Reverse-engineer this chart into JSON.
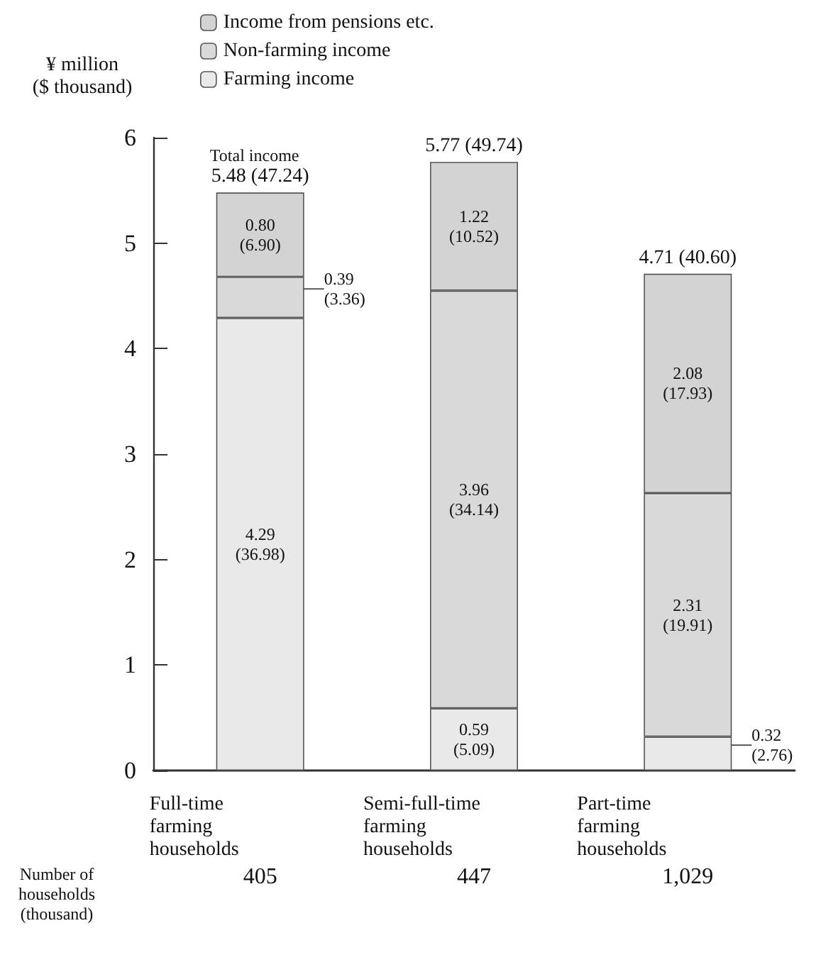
{
  "chart_data": {
    "type": "bar",
    "stacked": true,
    "ylabel": "¥ million\n($ thousand)",
    "categories": [
      "Full-time\nfarming\nhouseholds",
      "Semi-full-time\nfarming\nhouseholds",
      "Part-time\nfarming\nhouseholds"
    ],
    "series": [
      {
        "name": "Farming income",
        "color": "#e9e9e9",
        "values": [
          4.29,
          0.59,
          0.32
        ],
        "value_labels": [
          "4.29\n(36.98)",
          "0.59\n(5.09)",
          "0.32\n(2.76)"
        ]
      },
      {
        "name": "Non-farming income",
        "color": "#d9d9d9",
        "values": [
          0.39,
          3.96,
          2.31
        ],
        "value_labels": [
          "0.39\n(3.36)",
          "3.96\n(34.14)",
          "2.31\n(19.91)"
        ]
      },
      {
        "name": "Income from pensions etc.",
        "color": "#d3d3d3",
        "values": [
          0.8,
          1.22,
          2.08
        ],
        "value_labels": [
          "0.80\n(6.90)",
          "1.22\n(10.52)",
          "2.08\n(17.93)"
        ]
      }
    ],
    "totals": [
      "5.48 (47.24)",
      "5.77 (49.74)",
      "4.71 (40.60)"
    ],
    "ylim": [
      0,
      6
    ],
    "yticks": [
      0,
      1,
      2,
      3,
      4,
      5,
      6
    ],
    "grid": false,
    "legend": "top left",
    "annotations": [
      "Total income",
      "Number of\nhouseholds\n(thousand)",
      "405",
      "447",
      "1,029"
    ]
  }
}
